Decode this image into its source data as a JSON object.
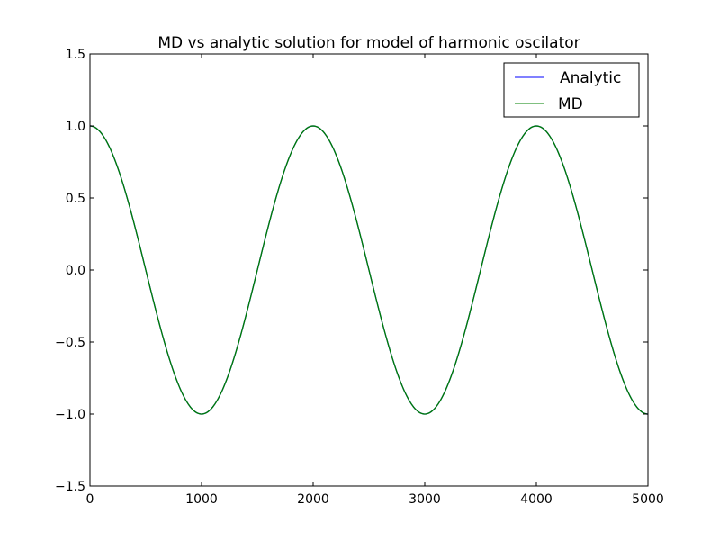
{
  "chart_data": {
    "type": "line",
    "title": "MD vs analytic solution for model of harmonic oscilator",
    "xlabel": "",
    "ylabel": "",
    "xlim": [
      0,
      5000
    ],
    "ylim": [
      -1.5,
      1.5
    ],
    "x_ticks": [
      "0",
      "1000",
      "2000",
      "3000",
      "4000",
      "5000"
    ],
    "y_ticks": [
      "1.5",
      "1.0",
      "0.5",
      "0.0",
      "−0.5",
      "−1.0",
      "−1.5"
    ],
    "grid": false,
    "legend_position": "top-right",
    "function": "cos(pi * x / 1000)",
    "x": [
      0,
      250,
      500,
      750,
      1000,
      1250,
      1500,
      1750,
      2000,
      2250,
      2500,
      2750,
      3000,
      3250,
      3500,
      3750,
      4000,
      4250,
      4500,
      4750,
      5000
    ],
    "series": [
      {
        "name": "Analytic",
        "color": "#0000ff",
        "values": [
          1.0,
          0.707,
          0.0,
          -0.707,
          -1.0,
          -0.707,
          0.0,
          0.707,
          1.0,
          0.707,
          0.0,
          -0.707,
          -1.0,
          -0.707,
          0.0,
          0.707,
          1.0,
          0.707,
          0.0,
          -0.707,
          -1.0
        ]
      },
      {
        "name": "MD",
        "color": "#008000",
        "values": [
          1.0,
          0.707,
          0.0,
          -0.707,
          -1.0,
          -0.707,
          0.0,
          0.707,
          1.0,
          0.707,
          0.0,
          -0.707,
          -1.0,
          -0.707,
          0.0,
          0.707,
          1.0,
          0.707,
          0.0,
          -0.707,
          -1.0
        ]
      }
    ]
  }
}
